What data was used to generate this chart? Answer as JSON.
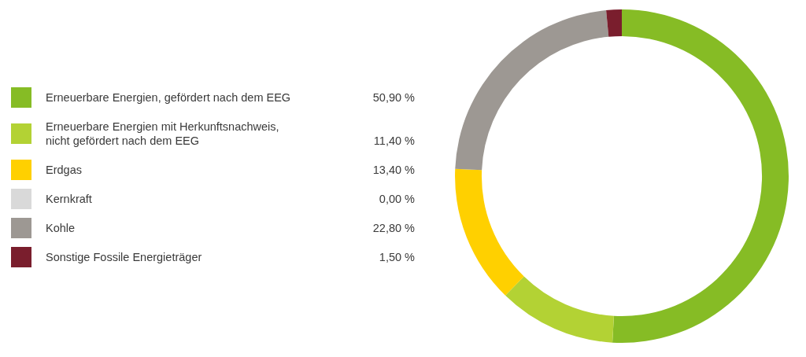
{
  "chart_data": {
    "type": "donut",
    "categories": [
      "Erneuerbare Energien, gefördert nach dem EEG",
      "Erneuerbare Energien mit Herkunftsnachweis,\nnicht gefördert nach dem EEG",
      "Erdgas",
      "Kernkraft",
      "Kohle",
      "Sonstige Fossile Energieträger"
    ],
    "values": [
      50.9,
      11.4,
      13.4,
      0,
      22.8,
      1.5
    ],
    "value_labels": [
      "50,90 %",
      "11,40 %",
      "13,40 %",
      "0,00 %",
      "22,80 %",
      "1,50 %"
    ],
    "colors": [
      "#86bc25",
      "#b3d234",
      "#ffd000",
      "#d9d9d9",
      "#9d9893",
      "#7a1e2d"
    ],
    "legend": "left"
  }
}
